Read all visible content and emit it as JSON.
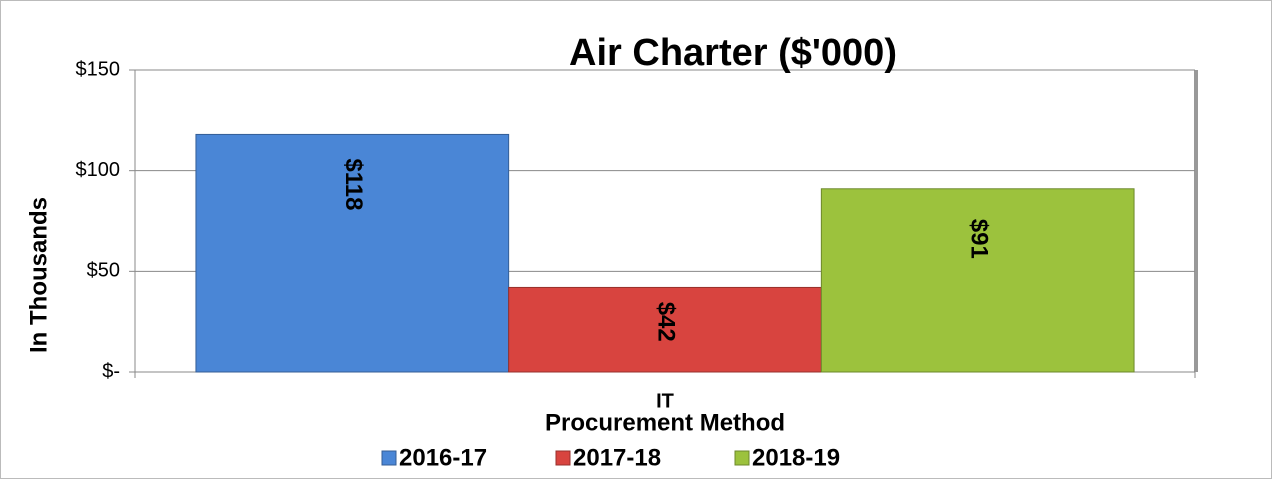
{
  "chart_data": {
    "type": "bar",
    "title": "Air Charter ($'000)",
    "y_label": "In Thousands",
    "x_label": "Procurement Method",
    "categories": [
      "IT"
    ],
    "series": [
      {
        "name": "2016-17",
        "color": "#4a86d6",
        "values": [
          118
        ],
        "value_labels": [
          "$118"
        ]
      },
      {
        "name": "2017-18",
        "color": "#d8443f",
        "values": [
          42
        ],
        "value_labels": [
          "$42"
        ]
      },
      {
        "name": "2018-19",
        "color": "#9cc23d",
        "values": [
          91
        ],
        "value_labels": [
          "$91"
        ]
      }
    ],
    "ylim": [
      0,
      150
    ],
    "yticks": [
      {
        "value": 0,
        "label": "$-"
      },
      {
        "value": 50,
        "label": "$50"
      },
      {
        "value": 100,
        "label": "$100"
      },
      {
        "value": 150,
        "label": "$150"
      }
    ],
    "grid": true,
    "legend": "bottom"
  }
}
